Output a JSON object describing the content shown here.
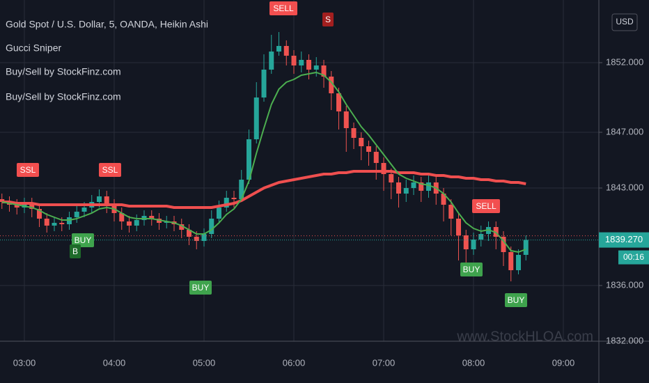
{
  "chart_data": {
    "type": "candlestick",
    "title": "Gold Spot / U.S. Dollar, 5, OANDA, Heikin Ashi",
    "indicators": [
      "Gucci Sniper",
      "Buy/Sell by StockFinz.com",
      "Buy/Sell by StockFinz.com"
    ],
    "currency": "USD",
    "watermark": "www.StockHLOA.com",
    "categories": [
      null,
      null,
      null,
      "03:00",
      null,
      null,
      null,
      null,
      null,
      null,
      null,
      null,
      null,
      null,
      null,
      "04:00",
      null,
      null,
      null,
      null,
      null,
      null,
      null,
      null,
      null,
      null,
      null,
      "05:00",
      null,
      null,
      null,
      null,
      null,
      null,
      null,
      null,
      null,
      null,
      null,
      "06:00",
      null,
      null,
      null,
      null,
      null,
      null,
      null,
      null,
      null,
      null,
      null,
      "07:00",
      null,
      null,
      null,
      null,
      null,
      null,
      null,
      null,
      null,
      null,
      null,
      "08:00",
      null,
      null,
      null,
      null,
      null,
      null,
      null,
      null,
      null,
      null,
      null,
      "09:00"
    ],
    "open": [
      1842.2,
      1842.0,
      1841.8,
      1841.6,
      1841.9,
      1841.5,
      1840.8,
      1840.3,
      1840.5,
      1840.4,
      1840.9,
      1841.3,
      1841.6,
      1842.0,
      1842.4,
      1841.8,
      1841.2,
      1840.6,
      1840.3,
      1840.7,
      1841.0,
      1840.8,
      1840.5,
      1840.6,
      1840.4,
      1840.0,
      1839.5,
      1839.2,
      1839.7,
      1840.8,
      1841.6,
      1842.3,
      1842.2,
      1843.6,
      1846.5,
      1849.5,
      1851.5,
      1852.8,
      1853.2,
      1852.5,
      1851.8,
      1852.2,
      1851.5,
      1851.8,
      1851.0,
      1849.8,
      1848.5,
      1847.3,
      1846.6,
      1846.0,
      1845.6,
      1844.8,
      1844.0,
      1843.4,
      1842.6,
      1843.0,
      1843.4,
      1842.8,
      1843.4,
      1842.6,
      1841.8,
      1840.8,
      1839.6,
      1838.6,
      1839.3,
      1839.7,
      1840.2,
      1839.5,
      1838.4,
      1837.1,
      1838.2,
      null,
      null,
      null,
      null,
      null
    ],
    "high": [
      1842.6,
      1842.4,
      1842.2,
      1842.3,
      1842.3,
      1841.9,
      1841.2,
      1840.9,
      1840.9,
      1841.3,
      1841.7,
      1842.0,
      1842.5,
      1842.9,
      1842.8,
      1842.2,
      1841.6,
      1841.0,
      1841.1,
      1841.4,
      1841.4,
      1841.2,
      1841.0,
      1841.0,
      1840.8,
      1840.4,
      1839.9,
      1840.1,
      1841.4,
      1842.1,
      1842.8,
      1842.8,
      1844.3,
      1847.2,
      1850.6,
      1852.6,
      1854.0,
      1854.2,
      1853.6,
      1852.9,
      1852.8,
      1852.6,
      1852.4,
      1852.2,
      1851.4,
      1850.2,
      1848.9,
      1847.7,
      1847.0,
      1846.4,
      1846.0,
      1845.2,
      1844.4,
      1843.8,
      1843.6,
      1843.9,
      1843.8,
      1843.9,
      1843.8,
      1843.0,
      1842.2,
      1841.2,
      1840.0,
      1839.8,
      1840.3,
      1840.6,
      1840.6,
      1839.9,
      1838.8,
      1838.6,
      1839.6,
      null,
      null,
      null,
      null,
      null
    ],
    "low": [
      1841.5,
      1841.3,
      1841.1,
      1841.2,
      1840.9,
      1840.2,
      1839.8,
      1839.9,
      1839.9,
      1840.0,
      1840.5,
      1840.9,
      1841.2,
      1841.6,
      1841.2,
      1840.6,
      1840.0,
      1839.8,
      1839.9,
      1840.3,
      1840.3,
      1840.0,
      1840.1,
      1839.9,
      1839.4,
      1838.9,
      1838.6,
      1838.8,
      1839.4,
      1840.5,
      1841.3,
      1841.6,
      1842.0,
      1843.3,
      1846.2,
      1849.2,
      1851.2,
      1852.5,
      1851.8,
      1851.2,
      1851.3,
      1850.8,
      1851.0,
      1850.2,
      1848.6,
      1847.2,
      1845.6,
      1845.8,
      1845.0,
      1844.6,
      1843.6,
      1842.8,
      1842.2,
      1841.6,
      1842.0,
      1842.5,
      1842.0,
      1842.3,
      1841.8,
      1840.6,
      1839.6,
      1837.8,
      1837.0,
      1838.2,
      1838.8,
      1839.2,
      1838.6,
      1837.4,
      1836.3,
      1836.8,
      1837.8,
      null,
      null,
      null,
      null,
      null
    ],
    "close": [
      1842.0,
      1841.8,
      1841.6,
      1841.9,
      1841.5,
      1840.8,
      1840.3,
      1840.5,
      1840.4,
      1840.9,
      1841.3,
      1841.6,
      1842.0,
      1842.4,
      1841.8,
      1841.2,
      1840.6,
      1840.3,
      1840.7,
      1841.0,
      1840.8,
      1840.5,
      1840.6,
      1840.4,
      1840.0,
      1839.5,
      1839.2,
      1839.7,
      1840.8,
      1841.6,
      1842.3,
      1842.2,
      1843.6,
      1846.5,
      1849.5,
      1851.5,
      1852.8,
      1853.2,
      1852.5,
      1851.8,
      1852.2,
      1851.5,
      1851.8,
      1851.0,
      1849.8,
      1848.5,
      1847.3,
      1846.6,
      1846.0,
      1845.6,
      1844.8,
      1844.0,
      1843.4,
      1842.6,
      1843.0,
      1843.4,
      1842.8,
      1843.4,
      1842.6,
      1841.8,
      1840.8,
      1839.6,
      1838.6,
      1839.3,
      1839.7,
      1840.2,
      1839.5,
      1838.4,
      1837.1,
      1838.2,
      1839.27,
      null,
      null,
      null,
      null,
      null
    ],
    "up_color": "#26a69a",
    "down_color": "#ef5350",
    "lines": [
      {
        "color": "#ef4f4f",
        "width": 4,
        "values": [
          1842.0,
          1842.0,
          1841.9,
          1841.9,
          1841.9,
          1841.8,
          1841.8,
          1841.8,
          1841.8,
          1841.8,
          1841.8,
          1841.8,
          1841.8,
          1841.8,
          1841.8,
          1841.8,
          1841.8,
          1841.7,
          1841.7,
          1841.7,
          1841.7,
          1841.7,
          1841.7,
          1841.6,
          1841.6,
          1841.6,
          1841.6,
          1841.6,
          1841.6,
          1841.7,
          1841.8,
          1841.9,
          1842.1,
          1842.4,
          1842.7,
          1843.0,
          1843.2,
          1843.4,
          1843.5,
          1843.6,
          1843.7,
          1843.8,
          1843.9,
          1844.0,
          1844.0,
          1844.1,
          1844.1,
          1844.2,
          1844.2,
          1844.2,
          1844.2,
          1844.2,
          1844.2,
          1844.1,
          1844.1,
          1844.1,
          1844.0,
          1844.0,
          1843.9,
          1843.9,
          1843.8,
          1843.8,
          1843.7,
          1843.7,
          1843.6,
          1843.6,
          1843.5,
          1843.5,
          1843.4,
          1843.4,
          1843.3,
          null,
          null,
          null,
          null,
          null
        ]
      },
      {
        "color": "#4caf50",
        "width": 2,
        "values": [
          1842.0,
          1841.9,
          1841.8,
          1841.7,
          1841.6,
          1841.4,
          1841.1,
          1840.9,
          1840.7,
          1840.7,
          1840.8,
          1841.0,
          1841.2,
          1841.5,
          1841.6,
          1841.5,
          1841.2,
          1840.9,
          1840.8,
          1840.8,
          1840.8,
          1840.7,
          1840.6,
          1840.5,
          1840.3,
          1840.0,
          1839.7,
          1839.7,
          1840.0,
          1840.5,
          1841.1,
          1841.5,
          1842.2,
          1843.5,
          1845.5,
          1847.3,
          1849.0,
          1850.1,
          1850.6,
          1850.8,
          1851.1,
          1851.2,
          1851.3,
          1851.1,
          1850.6,
          1849.9,
          1849.0,
          1848.2,
          1847.4,
          1846.8,
          1846.1,
          1845.4,
          1844.7,
          1844.0,
          1843.7,
          1843.5,
          1843.3,
          1843.2,
          1843.0,
          1842.6,
          1842.0,
          1841.2,
          1840.5,
          1840.1,
          1839.9,
          1840.0,
          1839.8,
          1839.2,
          1838.5,
          1838.4,
          1838.6,
          null,
          null,
          null,
          null,
          null
        ]
      }
    ],
    "ylim": [
      1832,
      1856.5
    ],
    "yticks": [
      {
        "value": 1832,
        "label": "1832.000"
      },
      {
        "value": 1836,
        "label": "1836.000"
      },
      {
        "value": 1843,
        "label": "1843.000"
      },
      {
        "value": 1847,
        "label": "1847.000"
      },
      {
        "value": 1852,
        "label": "1852.000"
      }
    ],
    "grid": true,
    "last_price": {
      "value": 1839.27,
      "label": "1839.270"
    },
    "countdown": "00:16",
    "annotations": [
      "SSL",
      "SSL",
      "SELL",
      "S",
      "SELL",
      "BUY",
      "B",
      "BUY",
      "BUY",
      "BUY"
    ]
  }
}
